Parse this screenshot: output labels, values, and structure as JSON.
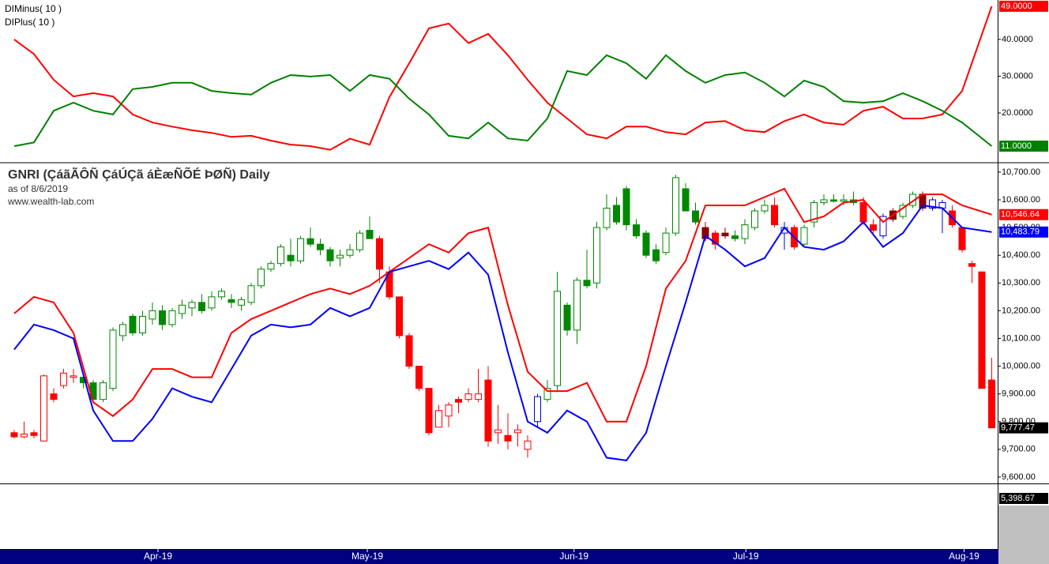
{
  "chart_data": [
    {
      "type": "line",
      "legend": [
        "DIMinus( 10 )",
        "DIPlus( 10 )"
      ],
      "x": [
        0,
        2,
        4,
        6,
        8,
        10,
        12,
        14,
        16,
        18,
        20,
        22,
        24,
        26,
        28,
        30,
        32,
        34,
        36,
        38,
        40,
        42,
        44,
        46,
        48,
        50,
        52,
        54,
        56,
        58,
        60,
        62,
        64,
        66,
        68,
        70,
        72,
        74,
        76,
        78,
        80,
        82,
        84,
        86,
        88,
        90,
        92,
        94,
        96,
        99
      ],
      "xlim": [
        -1.44,
        99.6
      ],
      "ylim": [
        6.7,
        50.7
      ],
      "yticks": [
        {
          "value": 40,
          "label": "40.0000"
        },
        {
          "value": 30,
          "label": "30.0000"
        },
        {
          "value": 20,
          "label": "20.0000"
        }
      ],
      "series": [
        {
          "name": "DIMinus( 10 )",
          "color": "#ff0000",
          "last_label": "49.0000",
          "values": [
            40,
            36,
            29,
            24.5,
            25.4,
            24.5,
            19.6,
            17.4,
            16.3,
            15.3,
            14.6,
            13.5,
            13.8,
            12.5,
            11.4,
            11,
            10,
            13,
            11.4,
            24.3,
            33.5,
            43,
            44.3,
            39,
            41.5,
            35.7,
            29,
            22.8,
            18.5,
            14.2,
            13.1,
            16.3,
            16.3,
            14.8,
            14.2,
            17.4,
            17.8,
            15.3,
            14.8,
            17.8,
            19.6,
            17.4,
            16.8,
            20.6,
            21.7,
            18.5,
            18.5,
            19.6,
            26,
            49
          ]
        },
        {
          "name": "DIPlus( 10 )",
          "color": "#008000",
          "last_label": "11.0000",
          "values": [
            11,
            12,
            20.6,
            22.8,
            20.6,
            19.6,
            26.5,
            27.1,
            28.2,
            28.2,
            26,
            25.4,
            25,
            28.2,
            30.3,
            29.9,
            30.3,
            26,
            30.3,
            29.3,
            23.9,
            19.6,
            13.8,
            13.1,
            17.4,
            13.1,
            12.5,
            18.5,
            31.4,
            30.3,
            35.7,
            33.5,
            29.3,
            35.7,
            31.4,
            28.2,
            30.3,
            31,
            28.2,
            24.5,
            28.8,
            27.1,
            23.2,
            22.8,
            23.2,
            25.4,
            23.2,
            20.6,
            17.4,
            11
          ]
        }
      ]
    },
    {
      "type": "candlestick",
      "title": "GNRI (ÇáãÃÔÑ ÇáÚÇã áÈæÑÕÉ ÞØÑ) Daily",
      "subtitle": "as of 8/6/2019",
      "source": "www.wealth-lab.com",
      "xlim": [
        -1.44,
        99.6
      ],
      "xticks": [
        {
          "value": 14.56,
          "label": "Apr-19"
        },
        {
          "value": 35.76,
          "label": "May-19"
        },
        {
          "value": 56.7,
          "label": "Jun-19"
        },
        {
          "value": 74.1,
          "label": "Jul-19"
        },
        {
          "value": 96.2,
          "label": "Aug-19"
        }
      ],
      "ylim": [
        9577,
        10731
      ],
      "yticks": [
        {
          "value": 10700,
          "label": "10,700.00"
        },
        {
          "value": 10600,
          "label": "10,600.00"
        },
        {
          "value": 10500,
          "label": "10,500.00"
        },
        {
          "value": 10400,
          "label": "10,400.00"
        },
        {
          "value": 10300,
          "label": "10,300.00"
        },
        {
          "value": 10200,
          "label": "10,200.00"
        },
        {
          "value": 10100,
          "label": "10,100.00"
        },
        {
          "value": 10000,
          "label": "10,000.00"
        },
        {
          "value": 9900,
          "label": "9,900.00"
        },
        {
          "value": 9800,
          "label": "9,800.00"
        },
        {
          "value": 9700,
          "label": "9,700.00"
        },
        {
          "value": 9600,
          "label": "9,600.00"
        }
      ],
      "last_close_label": "9,777.47",
      "lower_pane_label": "5,398.67",
      "ohlc": [
        [
          9760,
          9770,
          9740,
          9745
        ],
        [
          9745,
          9800,
          9740,
          9755
        ],
        [
          9760,
          9770,
          9740,
          9750
        ],
        [
          9730,
          9970,
          9730,
          9965
        ],
        [
          9900,
          9920,
          9870,
          9880
        ],
        [
          9930,
          9990,
          9920,
          9975
        ],
        [
          9960,
          9990,
          9940,
          9965
        ],
        [
          9960,
          9970,
          9920,
          9940
        ],
        [
          9940,
          9950,
          9880,
          9880
        ],
        [
          9880,
          9950,
          9870,
          9940
        ],
        [
          9920,
          10140,
          9910,
          10130
        ],
        [
          10110,
          10160,
          10090,
          10150
        ],
        [
          10180,
          10190,
          10110,
          10120
        ],
        [
          10120,
          10200,
          10110,
          10180
        ],
        [
          10170,
          10230,
          10150,
          10200
        ],
        [
          10200,
          10220,
          10130,
          10150
        ],
        [
          10150,
          10210,
          10140,
          10200
        ],
        [
          10190,
          10240,
          10170,
          10220
        ],
        [
          10210,
          10240,
          10180,
          10230
        ],
        [
          10230,
          10260,
          10190,
          10200
        ],
        [
          10210,
          10270,
          10200,
          10250
        ],
        [
          10250,
          10280,
          10240,
          10270
        ],
        [
          10240,
          10260,
          10210,
          10230
        ],
        [
          10220,
          10250,
          10200,
          10240
        ],
        [
          10230,
          10300,
          10220,
          10290
        ],
        [
          10290,
          10360,
          10280,
          10350
        ],
        [
          10350,
          10380,
          10340,
          10370
        ],
        [
          10370,
          10440,
          10360,
          10430
        ],
        [
          10400,
          10460,
          10360,
          10380
        ],
        [
          10380,
          10470,
          10370,
          10460
        ],
        [
          10460,
          10500,
          10430,
          10440
        ],
        [
          10440,
          10460,
          10400,
          10420
        ],
        [
          10420,
          10430,
          10360,
          10380
        ],
        [
          10390,
          10420,
          10360,
          10400
        ],
        [
          10400,
          10440,
          10390,
          10420
        ],
        [
          10420,
          10490,
          10410,
          10480
        ],
        [
          10490,
          10540,
          10460,
          10460
        ],
        [
          10460,
          10470,
          10300,
          10350
        ],
        [
          10340,
          10360,
          10240,
          10250
        ],
        [
          10250,
          10250,
          10100,
          10110
        ],
        [
          10110,
          10120,
          9990,
          10000
        ],
        [
          10000,
          10000,
          9910,
          9920
        ],
        [
          9920,
          9920,
          9750,
          9760
        ],
        [
          9780,
          9860,
          9780,
          9840
        ],
        [
          9820,
          9870,
          9780,
          9860
        ],
        [
          9880,
          9890,
          9830,
          9870
        ],
        [
          9880,
          9920,
          9870,
          9900
        ],
        [
          9880,
          9990,
          9870,
          9900
        ],
        [
          9950,
          10000,
          9710,
          9730
        ],
        [
          9760,
          9860,
          9720,
          9770
        ],
        [
          9750,
          9830,
          9700,
          9730
        ],
        [
          9760,
          9790,
          9710,
          9770
        ],
        [
          9700,
          9750,
          9670,
          9730
        ],
        [
          9800,
          9900,
          9780,
          9890
        ],
        [
          9880,
          9950,
          9870,
          9920
        ],
        [
          9930,
          10340,
          9910,
          10270
        ],
        [
          10220,
          10230,
          10110,
          10130
        ],
        [
          10130,
          10320,
          10080,
          10310
        ],
        [
          10310,
          10420,
          10280,
          10290
        ],
        [
          10300,
          10520,
          10280,
          10500
        ],
        [
          10500,
          10620,
          10490,
          10570
        ],
        [
          10580,
          10610,
          10510,
          10520
        ],
        [
          10640,
          10650,
          10490,
          10510
        ],
        [
          10510,
          10530,
          10460,
          10470
        ],
        [
          10480,
          10490,
          10390,
          10400
        ],
        [
          10420,
          10440,
          10370,
          10380
        ],
        [
          10410,
          10500,
          10400,
          10480
        ],
        [
          10480,
          10690,
          10470,
          10680
        ],
        [
          10640,
          10660,
          10560,
          10560
        ],
        [
          10560,
          10590,
          10510,
          10520
        ],
        [
          10500,
          10520,
          10450,
          10460
        ],
        [
          10480,
          10490,
          10420,
          10440
        ],
        [
          10480,
          10500,
          10460,
          10470
        ],
        [
          10470,
          10490,
          10450,
          10460
        ],
        [
          10460,
          10530,
          10440,
          10510
        ],
        [
          10500,
          10570,
          10490,
          10560
        ],
        [
          10560,
          10600,
          10550,
          10580
        ],
        [
          10580,
          10610,
          10500,
          10510
        ],
        [
          10480,
          10520,
          10420,
          10500
        ],
        [
          10500,
          10510,
          10420,
          10430
        ],
        [
          10440,
          10510,
          10430,
          10500
        ],
        [
          10520,
          10600,
          10500,
          10590
        ],
        [
          10590,
          10620,
          10580,
          10600
        ],
        [
          10600,
          10620,
          10590,
          10595
        ],
        [
          10595,
          10620,
          10580,
          10600
        ],
        [
          10600,
          10630,
          10580,
          10590
        ],
        [
          10590,
          10610,
          10510,
          10520
        ],
        [
          10510,
          10530,
          10480,
          10490
        ],
        [
          10470,
          10550,
          10460,
          10540
        ],
        [
          10560,
          10570,
          10520,
          10530
        ],
        [
          10540,
          10590,
          10530,
          10580
        ],
        [
          10580,
          10630,
          10570,
          10620
        ],
        [
          10620,
          10630,
          10560,
          10570
        ],
        [
          10570,
          10610,
          10560,
          10600
        ],
        [
          10570,
          10600,
          10480,
          10590
        ],
        [
          10560,
          10580,
          10500,
          10510
        ],
        [
          10500,
          10500,
          10410,
          10420
        ],
        [
          10370,
          10380,
          10300,
          10360
        ],
        [
          10340,
          10340,
          9920,
          9920
        ],
        [
          9950,
          10030,
          9777,
          9777.47
        ]
      ],
      "candle_colors": [
        "#f00",
        "#f00",
        "#f00",
        "#f00",
        "#f00",
        "#f00",
        "#f00",
        "#080",
        "#080",
        "#080",
        "#080",
        "#080",
        "#080",
        "#080",
        "#080",
        "#080",
        "#080",
        "#080",
        "#080",
        "#080",
        "#080",
        "#080",
        "#080",
        "#080",
        "#080",
        "#080",
        "#080",
        "#080",
        "#080",
        "#080",
        "#080",
        "#080",
        "#080",
        "#080",
        "#080",
        "#080",
        "#080",
        "#f00",
        "#f00",
        "#f00",
        "#f00",
        "#f00",
        "#f00",
        "#f00",
        "#f00",
        "#f00",
        "#f00",
        "#f00",
        "#f00",
        "#f00",
        "#f00",
        "#f00",
        "#f00",
        "#00c",
        "#080",
        "#080",
        "#080",
        "#080",
        "#080",
        "#080",
        "#080",
        "#080",
        "#080",
        "#080",
        "#080",
        "#080",
        "#080",
        "#080",
        "#080",
        "#080",
        "#800",
        "#f00",
        "#800",
        "#080",
        "#080",
        "#080",
        "#080",
        "#f00",
        "#00c",
        "#f00",
        "#080",
        "#080",
        "#080",
        "#080",
        "#080",
        "#080",
        "#f00",
        "#f00",
        "#00c",
        "#800",
        "#080",
        "#080",
        "#800",
        "#00c",
        "#00c",
        "#f00",
        "#f00",
        "#f00",
        "#f00",
        "#f00"
      ],
      "band_x": [
        0,
        2,
        4,
        6,
        8,
        10,
        12,
        14,
        16,
        18,
        20,
        22,
        24,
        26,
        28,
        30,
        32,
        34,
        36,
        38,
        40,
        42,
        44,
        46,
        48,
        50,
        52,
        54,
        56,
        58,
        60,
        62,
        64,
        66,
        68,
        70,
        72,
        74,
        76,
        78,
        80,
        82,
        84,
        86,
        88,
        90,
        92,
        94,
        96,
        99
      ],
      "series": [
        {
          "name": "Upper band",
          "color": "#ff0000",
          "last_label": "10,546.64",
          "values": [
            10190,
            10250,
            10230,
            10120,
            9870,
            9820,
            9880,
            9990,
            9990,
            9960,
            9960,
            10120,
            10170,
            10200,
            10230,
            10260,
            10280,
            10260,
            10290,
            10340,
            10390,
            10440,
            10410,
            10480,
            10500,
            10220,
            9980,
            9910,
            9910,
            9940,
            9800,
            9800,
            10000,
            10280,
            10380,
            10580,
            10580,
            10580,
            10610,
            10640,
            10520,
            10540,
            10590,
            10600,
            10520,
            10570,
            10620,
            10620,
            10580,
            10546.64
          ]
        },
        {
          "name": "Lower band",
          "color": "#0000ff",
          "last_label": "10,483.79",
          "values": [
            10060,
            10150,
            10130,
            10100,
            9840,
            9730,
            9730,
            9810,
            9920,
            9890,
            9870,
            9990,
            10110,
            10150,
            10140,
            10150,
            10210,
            10180,
            10210,
            10340,
            10360,
            10380,
            10350,
            10410,
            10330,
            10050,
            9800,
            9760,
            9840,
            9800,
            9670,
            9660,
            9760,
            10000,
            10230,
            10470,
            10420,
            10360,
            10390,
            10500,
            10430,
            10420,
            10450,
            10520,
            10430,
            10480,
            10580,
            10570,
            10500,
            10483.79
          ]
        }
      ]
    }
  ]
}
